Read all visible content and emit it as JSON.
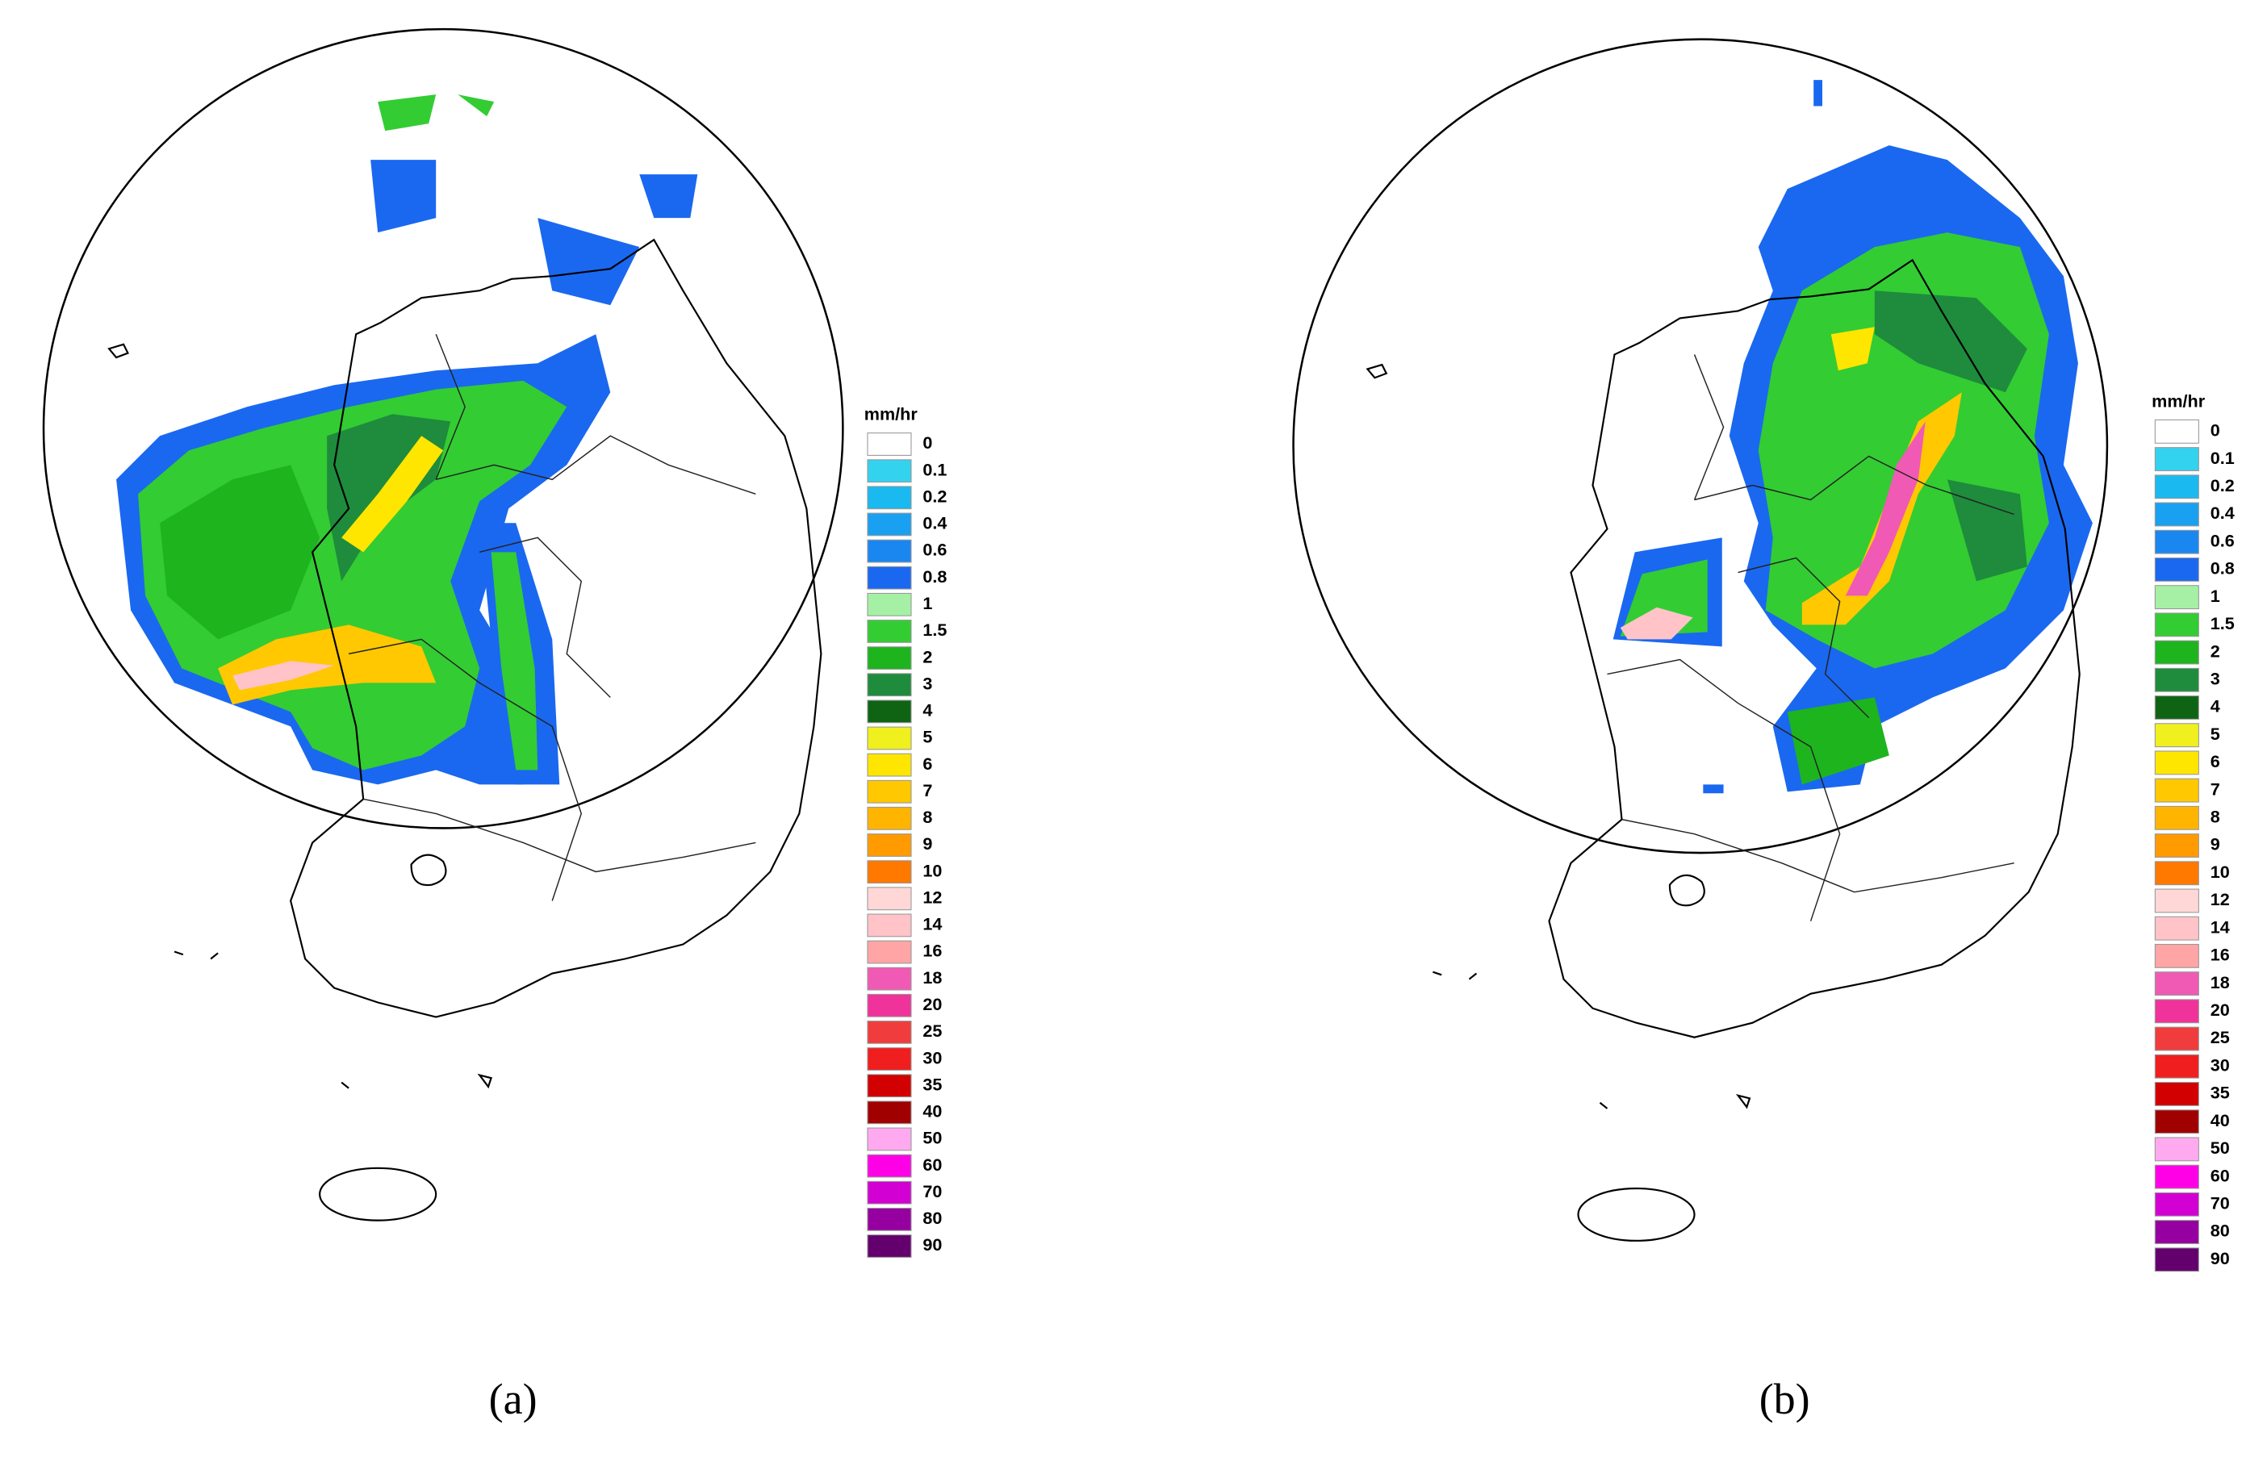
{
  "legend": {
    "title": "mm/hr",
    "items": [
      {
        "label": "0",
        "color": "#ffffff"
      },
      {
        "label": "0.1",
        "color": "#33d2ee"
      },
      {
        "label": "0.2",
        "color": "#1ab9f0"
      },
      {
        "label": "0.4",
        "color": "#1aa0f0"
      },
      {
        "label": "0.6",
        "color": "#1a87f0"
      },
      {
        "label": "0.8",
        "color": "#1a68f0"
      },
      {
        "label": "1",
        "color": "#a5f0a5"
      },
      {
        "label": "1.5",
        "color": "#33cc33"
      },
      {
        "label": "2",
        "color": "#1eb41e"
      },
      {
        "label": "3",
        "color": "#1e8c3c"
      },
      {
        "label": "4",
        "color": "#0f6414"
      },
      {
        "label": "5",
        "color": "#f0f01e"
      },
      {
        "label": "6",
        "color": "#ffe600"
      },
      {
        "label": "7",
        "color": "#ffc800"
      },
      {
        "label": "8",
        "color": "#ffb400"
      },
      {
        "label": "9",
        "color": "#ff9b00"
      },
      {
        "label": "10",
        "color": "#ff7800"
      },
      {
        "label": "12",
        "color": "#ffd7d7"
      },
      {
        "label": "14",
        "color": "#ffc3c8"
      },
      {
        "label": "16",
        "color": "#ffa5a5"
      },
      {
        "label": "18",
        "color": "#f05ab4"
      },
      {
        "label": "20",
        "color": "#f0329b"
      },
      {
        "label": "25",
        "color": "#f03c3c"
      },
      {
        "label": "30",
        "color": "#f01e1e"
      },
      {
        "label": "35",
        "color": "#d20000"
      },
      {
        "label": "40",
        "color": "#a00000"
      },
      {
        "label": "50",
        "color": "#ffaaf0"
      },
      {
        "label": "60",
        "color": "#ff00e6"
      },
      {
        "label": "70",
        "color": "#d200d2"
      },
      {
        "label": "80",
        "color": "#9600a0"
      },
      {
        "label": "90",
        "color": "#64006e"
      }
    ]
  },
  "panels": [
    {
      "label": "(a)"
    },
    {
      "label": "(b)"
    }
  ]
}
